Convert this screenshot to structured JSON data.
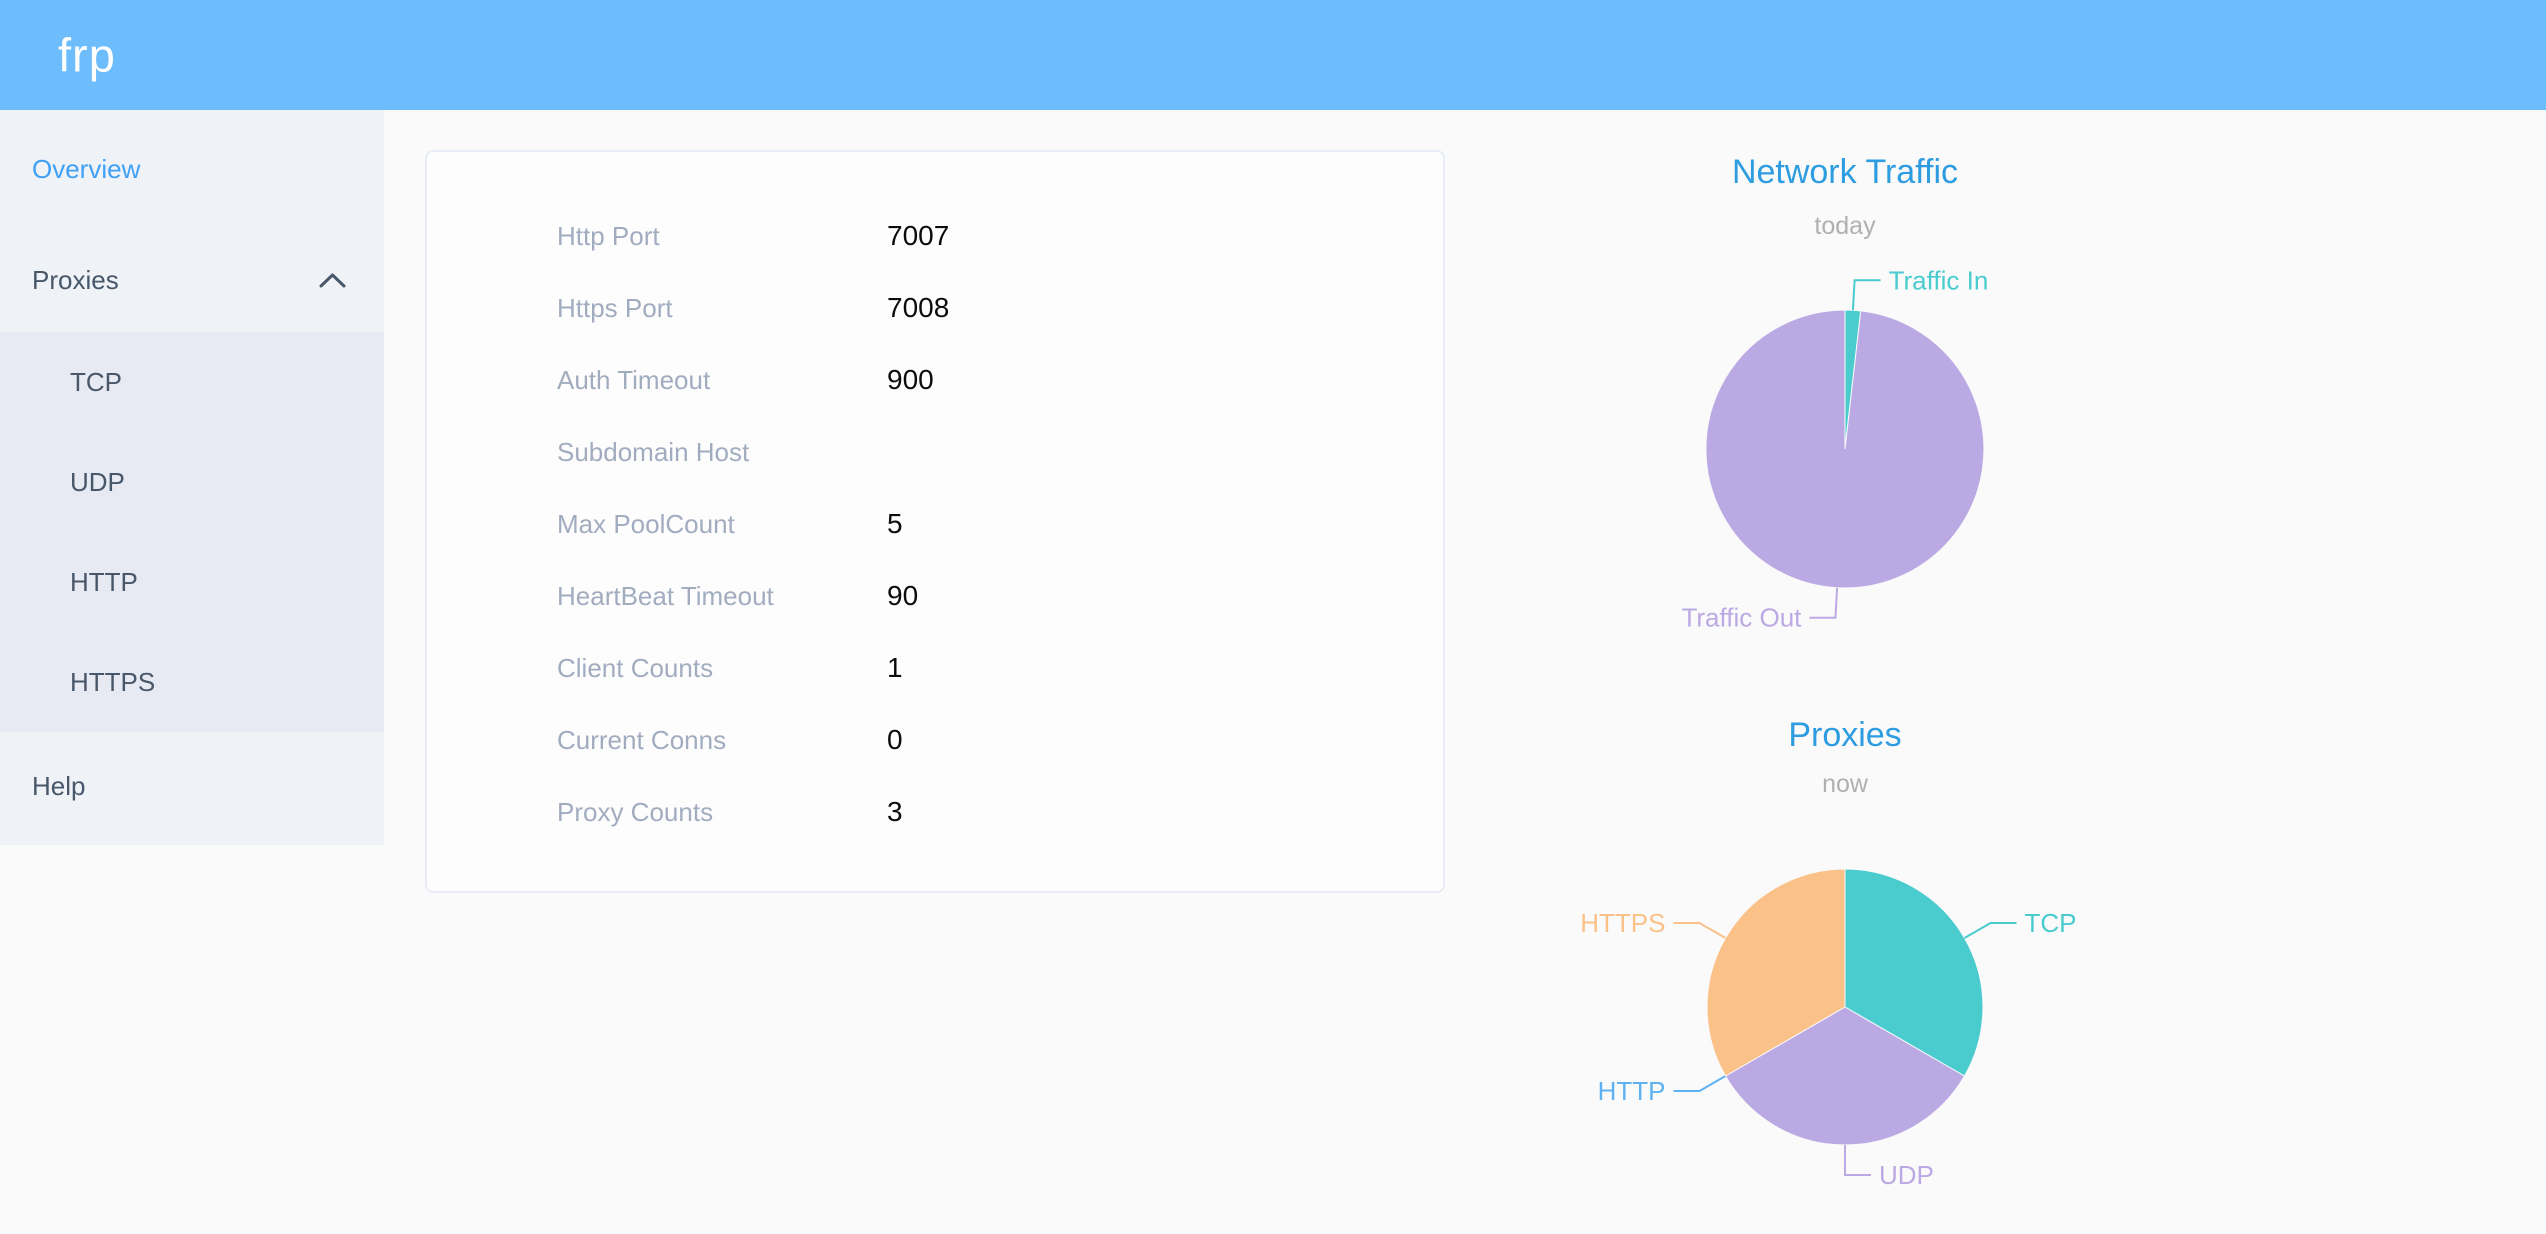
{
  "header": {
    "logo_text": "frp"
  },
  "colors": {
    "header_bg": "#6dbdfd",
    "logo_text": "#ffffff",
    "sidebar_bg": "#eff2f7",
    "submenu_bg": "#e7eaf2",
    "menu_text": "#48576a",
    "menu_active_text": "#3fa0f4",
    "main_bg": "#fafafb",
    "panel_bg": "#fdfdfe",
    "panel_border": "#e8ecf5",
    "info_label_text": "#a2acbf",
    "info_value_text": "#0c0c0c",
    "chart_title_blue": "#2d9ce0",
    "chart_subtitle_gray": "#b0b0b0",
    "teal": "#4acbce",
    "purple": "#bba9e3",
    "http_blue": "#5fb2f2",
    "orange": "#fac189"
  },
  "sidebar": {
    "items": [
      {
        "label": "Overview",
        "active": true
      },
      {
        "label": "Proxies",
        "active": false,
        "expanded": true,
        "icon": "chevron-up-icon",
        "children": [
          {
            "label": "TCP"
          },
          {
            "label": "UDP"
          },
          {
            "label": "HTTP"
          },
          {
            "label": "HTTPS"
          }
        ]
      },
      {
        "label": "Help",
        "active": false
      }
    ]
  },
  "panel": {
    "rows": [
      {
        "label": "Http Port",
        "value": "7007"
      },
      {
        "label": "Https Port",
        "value": "7008"
      },
      {
        "label": "Auth Timeout",
        "value": "900"
      },
      {
        "label": "Subdomain Host",
        "value": ""
      },
      {
        "label": "Max PoolCount",
        "value": "5"
      },
      {
        "label": "HeartBeat Timeout",
        "value": "90"
      },
      {
        "label": "Client Counts",
        "value": "1"
      },
      {
        "label": "Current Conns",
        "value": "0"
      },
      {
        "label": "Proxy Counts",
        "value": "3"
      }
    ]
  },
  "chart_data": [
    {
      "type": "pie",
      "title": "Network Traffic",
      "subtitle": "today",
      "categories": [
        "Traffic In",
        "Traffic Out"
      ],
      "values": [
        1.8,
        98.2
      ],
      "colors": [
        "#4acbce",
        "#bba9e3"
      ],
      "legend_position": "callout-labels"
    },
    {
      "type": "pie",
      "title": "Proxies",
      "subtitle": "now",
      "categories": [
        "TCP",
        "UDP",
        "HTTP",
        "HTTPS"
      ],
      "values": [
        1,
        1,
        0,
        1
      ],
      "colors": [
        "#4acbce",
        "#bba9e3",
        "#5fb2f2",
        "#fac189"
      ],
      "legend_position": "callout-labels"
    }
  ]
}
